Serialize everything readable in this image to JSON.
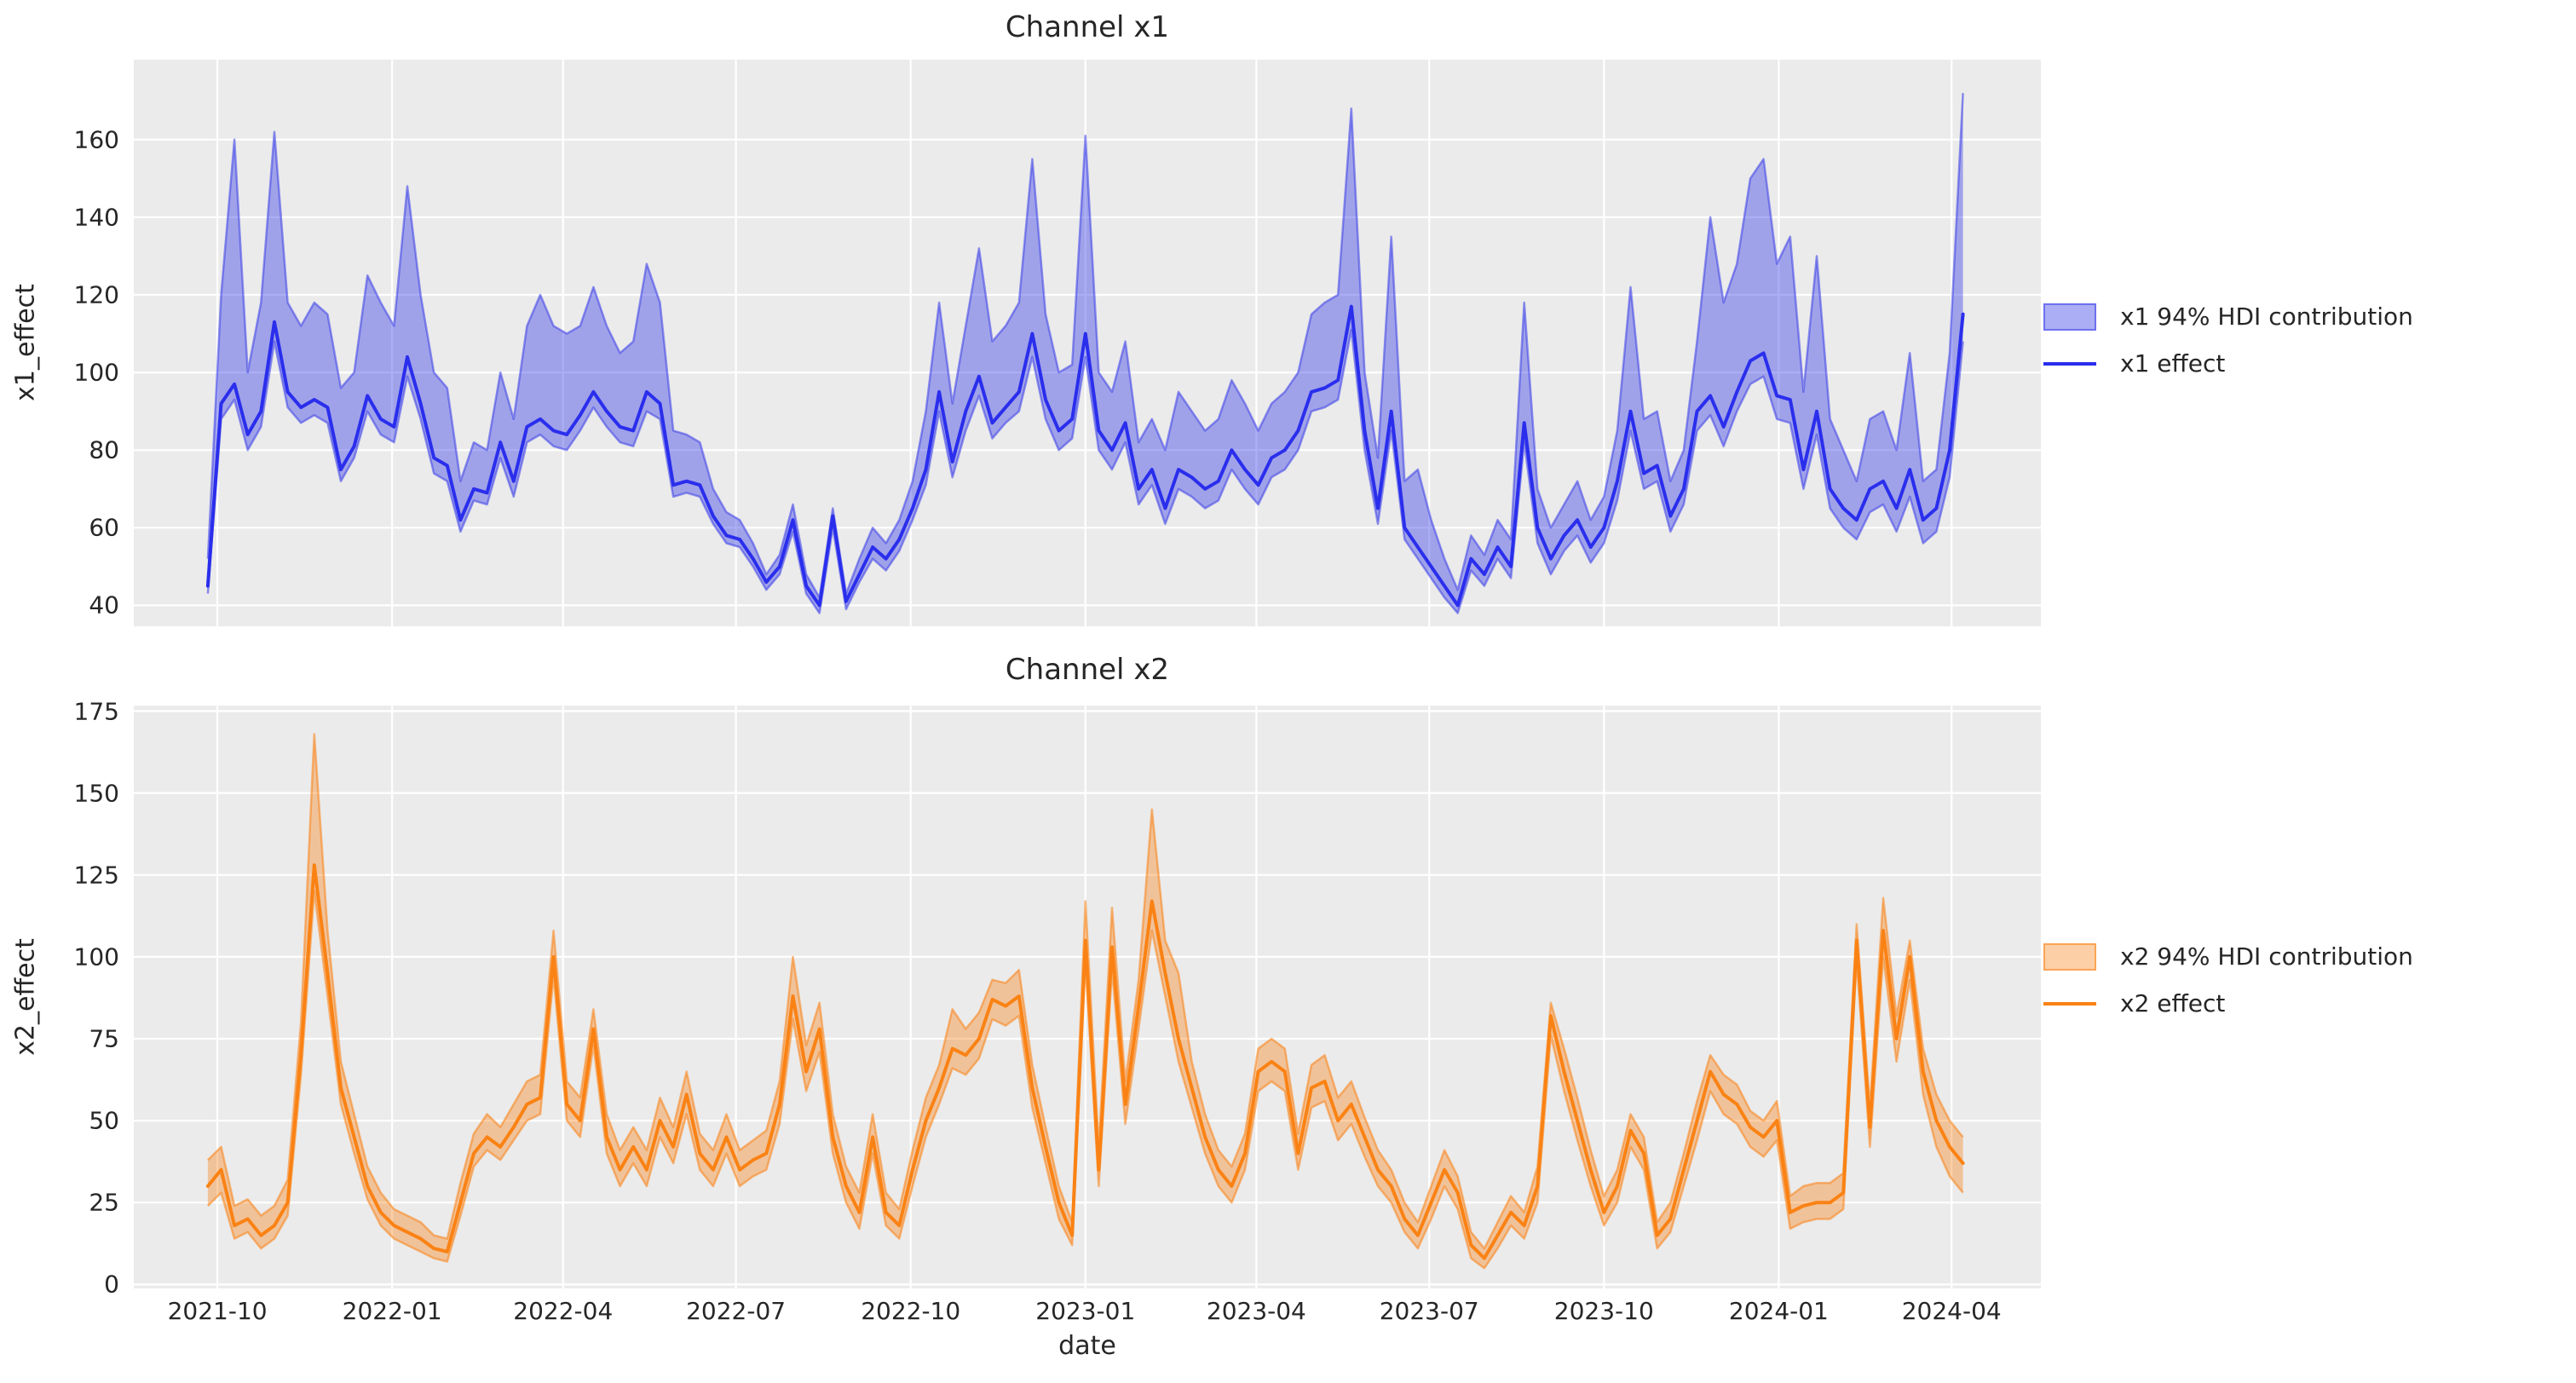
{
  "figure": {
    "background": "#ffffff",
    "axes_background": "#ebebeb",
    "grid_color": "#ffffff",
    "text_color": "#262626",
    "xlabel": "date"
  },
  "chart_data": [
    {
      "type": "line",
      "title": "Channel x1",
      "ylabel": "x1_effect",
      "xlabel": "date",
      "line_color": "#2a2eec",
      "band_fill": "rgba(58,62,232,0.42)",
      "band_edge": "rgba(58,62,232,0.55)",
      "legend": [
        "x1 94% HDI contribution",
        "x1 effect"
      ],
      "legend_position": "center right outside",
      "grid": true,
      "x_start": "2021-09-26",
      "x_end": "2024-04-07",
      "x_freq": "weekly",
      "xlim": [
        "2021-08-18",
        "2024-05-18"
      ],
      "ylim": [
        34.6,
        180.6
      ],
      "yticks": [
        160,
        140,
        120,
        100,
        80,
        60,
        40
      ],
      "xticks": [
        {
          "label": "2021-10",
          "date": "2021-10-01"
        },
        {
          "label": "2022-01",
          "date": "2022-01-01"
        },
        {
          "label": "2022-04",
          "date": "2022-04-01"
        },
        {
          "label": "2022-07",
          "date": "2022-07-01"
        },
        {
          "label": "2022-10",
          "date": "2022-10-01"
        },
        {
          "label": "2023-01",
          "date": "2023-01-01"
        },
        {
          "label": "2023-04",
          "date": "2023-04-01"
        },
        {
          "label": "2023-07",
          "date": "2023-07-01"
        },
        {
          "label": "2023-10",
          "date": "2023-10-01"
        },
        {
          "label": "2024-01",
          "date": "2024-01-01"
        },
        {
          "label": "2024-04",
          "date": "2024-04-01"
        }
      ],
      "series": [
        {
          "name": "x1 effect",
          "role": "line",
          "values": [
            45,
            92,
            97,
            84,
            90,
            113,
            95,
            91,
            93,
            91,
            75,
            81,
            94,
            88,
            86,
            104,
            92,
            78,
            76,
            62,
            70,
            69,
            82,
            72,
            86,
            88,
            85,
            84,
            89,
            95,
            90,
            86,
            85,
            95,
            92,
            71,
            72,
            71,
            63,
            58,
            57,
            52,
            46,
            50,
            62,
            45,
            40,
            63,
            41,
            48,
            55,
            52,
            57,
            65,
            75,
            95,
            77,
            90,
            99,
            87,
            91,
            95,
            110,
            93,
            85,
            88,
            110,
            85,
            80,
            87,
            70,
            75,
            65,
            75,
            73,
            70,
            72,
            80,
            75,
            71,
            78,
            80,
            85,
            95,
            96,
            98,
            117,
            85,
            65,
            90,
            60,
            55,
            50,
            45,
            40,
            52,
            48,
            55,
            50,
            87,
            60,
            52,
            58,
            62,
            55,
            60,
            72,
            90,
            74,
            76,
            63,
            70,
            90,
            94,
            86,
            95,
            103,
            105,
            94,
            93,
            75,
            90,
            70,
            65,
            62,
            70,
            72,
            65,
            75,
            62,
            65,
            80,
            115
          ]
        },
        {
          "name": "x1 94% HDI low",
          "role": "band_low",
          "values": [
            43,
            88,
            93,
            80,
            86,
            108,
            91,
            87,
            89,
            87,
            72,
            78,
            90,
            84,
            82,
            99,
            88,
            74,
            72,
            59,
            67,
            66,
            78,
            68,
            82,
            84,
            81,
            80,
            85,
            91,
            86,
            82,
            81,
            90,
            88,
            68,
            69,
            68,
            61,
            56,
            55,
            50,
            44,
            48,
            59,
            43,
            38,
            60,
            39,
            46,
            52,
            49,
            54,
            62,
            71,
            90,
            73,
            85,
            94,
            83,
            87,
            90,
            104,
            88,
            80,
            83,
            104,
            80,
            75,
            82,
            66,
            71,
            61,
            70,
            68,
            65,
            67,
            75,
            70,
            66,
            73,
            75,
            80,
            90,
            91,
            93,
            111,
            80,
            61,
            85,
            57,
            52,
            47,
            42,
            38,
            49,
            45,
            52,
            47,
            82,
            56,
            48,
            54,
            58,
            51,
            56,
            67,
            85,
            70,
            72,
            59,
            66,
            85,
            89,
            81,
            90,
            97,
            99,
            88,
            87,
            70,
            84,
            65,
            60,
            57,
            64,
            66,
            59,
            68,
            56,
            59,
            73,
            108
          ]
        },
        {
          "name": "x1 94% HDI high",
          "role": "band_high",
          "values": [
            52,
            120,
            160,
            100,
            118,
            162,
            118,
            112,
            118,
            115,
            96,
            100,
            125,
            118,
            112,
            148,
            120,
            100,
            96,
            72,
            82,
            80,
            100,
            88,
            112,
            120,
            112,
            110,
            112,
            122,
            112,
            105,
            108,
            128,
            118,
            85,
            84,
            82,
            70,
            64,
            62,
            56,
            48,
            53,
            66,
            48,
            42,
            65,
            43,
            52,
            60,
            56,
            62,
            72,
            90,
            118,
            92,
            112,
            132,
            108,
            112,
            118,
            155,
            115,
            100,
            102,
            161,
            100,
            95,
            108,
            82,
            88,
            80,
            95,
            90,
            85,
            88,
            98,
            92,
            85,
            92,
            95,
            100,
            115,
            118,
            120,
            168,
            100,
            78,
            135,
            72,
            75,
            62,
            52,
            44,
            58,
            53,
            62,
            57,
            118,
            70,
            60,
            66,
            72,
            62,
            68,
            85,
            122,
            88,
            90,
            72,
            80,
            108,
            140,
            118,
            128,
            150,
            155,
            128,
            135,
            95,
            130,
            88,
            80,
            72,
            88,
            90,
            80,
            105,
            72,
            75,
            105,
            172
          ]
        }
      ]
    },
    {
      "type": "line",
      "title": "Channel x2",
      "ylabel": "x2_effect",
      "xlabel": "date",
      "line_color": "#fa8214",
      "band_fill": "rgba(250,130,20,0.38)",
      "band_edge": "rgba(250,130,20,0.55)",
      "legend": [
        "x2 94% HDI contribution",
        "x2 effect"
      ],
      "legend_position": "center right outside",
      "grid": true,
      "x_start": "2021-09-26",
      "x_end": "2024-04-07",
      "x_freq": "weekly",
      "xlim": [
        "2021-08-18",
        "2024-05-18"
      ],
      "ylim": [
        -1.2,
        176.7
      ],
      "yticks": [
        175,
        150,
        125,
        100,
        75,
        50,
        25,
        0
      ],
      "xticks": [
        {
          "label": "2021-10",
          "date": "2021-10-01"
        },
        {
          "label": "2022-01",
          "date": "2022-01-01"
        },
        {
          "label": "2022-04",
          "date": "2022-04-01"
        },
        {
          "label": "2022-07",
          "date": "2022-07-01"
        },
        {
          "label": "2022-10",
          "date": "2022-10-01"
        },
        {
          "label": "2023-01",
          "date": "2023-01-01"
        },
        {
          "label": "2023-04",
          "date": "2023-04-01"
        },
        {
          "label": "2023-07",
          "date": "2023-07-01"
        },
        {
          "label": "2023-10",
          "date": "2023-10-01"
        },
        {
          "label": "2024-01",
          "date": "2024-01-01"
        },
        {
          "label": "2024-04",
          "date": "2024-04-01"
        }
      ],
      "series": [
        {
          "name": "x2 effect",
          "role": "line",
          "values": [
            30,
            35,
            18,
            20,
            15,
            18,
            25,
            70,
            128,
            95,
            60,
            45,
            30,
            22,
            18,
            16,
            14,
            11,
            10,
            25,
            40,
            45,
            42,
            48,
            55,
            57,
            100,
            55,
            50,
            78,
            45,
            35,
            42,
            35,
            50,
            42,
            58,
            40,
            35,
            45,
            35,
            38,
            40,
            55,
            88,
            65,
            78,
            45,
            30,
            22,
            45,
            22,
            18,
            35,
            50,
            60,
            72,
            70,
            75,
            87,
            85,
            88,
            60,
            42,
            25,
            15,
            105,
            35,
            103,
            55,
            85,
            117,
            95,
            75,
            60,
            45,
            35,
            30,
            40,
            65,
            68,
            65,
            40,
            60,
            62,
            50,
            55,
            45,
            35,
            30,
            20,
            15,
            25,
            35,
            28,
            12,
            8,
            15,
            22,
            18,
            30,
            82,
            65,
            50,
            35,
            22,
            30,
            47,
            40,
            15,
            20,
            35,
            50,
            65,
            58,
            55,
            48,
            45,
            50,
            22,
            24,
            25,
            25,
            28,
            105,
            48,
            108,
            75,
            100,
            65,
            50,
            42,
            37
          ]
        },
        {
          "name": "x2 94% HDI low",
          "role": "band_low",
          "values": [
            24,
            28,
            14,
            16,
            11,
            14,
            21,
            64,
            120,
            88,
            55,
            40,
            26,
            18,
            14,
            12,
            10,
            8,
            7,
            21,
            36,
            41,
            38,
            44,
            50,
            52,
            94,
            50,
            45,
            73,
            40,
            30,
            37,
            30,
            45,
            37,
            52,
            35,
            30,
            40,
            30,
            33,
            35,
            49,
            81,
            59,
            71,
            40,
            25,
            17,
            40,
            18,
            14,
            30,
            45,
            55,
            66,
            64,
            69,
            81,
            79,
            82,
            54,
            37,
            20,
            12,
            98,
            30,
            96,
            49,
            78,
            108,
            88,
            68,
            54,
            40,
            30,
            25,
            35,
            59,
            62,
            59,
            35,
            54,
            56,
            44,
            49,
            39,
            30,
            25,
            16,
            11,
            20,
            30,
            23,
            8,
            5,
            11,
            18,
            14,
            25,
            76,
            59,
            44,
            30,
            18,
            25,
            42,
            35,
            11,
            16,
            30,
            44,
            59,
            52,
            49,
            42,
            39,
            44,
            17,
            19,
            20,
            20,
            23,
            99,
            42,
            100,
            68,
            93,
            58,
            42,
            33,
            28
          ]
        },
        {
          "name": "x2 94% HDI high",
          "role": "band_high",
          "values": [
            38,
            42,
            24,
            26,
            21,
            24,
            32,
            80,
            168,
            108,
            68,
            52,
            36,
            28,
            23,
            21,
            19,
            15,
            14,
            31,
            46,
            52,
            48,
            55,
            62,
            64,
            108,
            62,
            57,
            84,
            52,
            41,
            48,
            41,
            57,
            48,
            65,
            46,
            41,
            52,
            41,
            44,
            47,
            62,
            100,
            73,
            86,
            52,
            36,
            28,
            52,
            28,
            23,
            41,
            57,
            67,
            84,
            78,
            83,
            93,
            92,
            96,
            67,
            48,
            30,
            19,
            117,
            42,
            115,
            62,
            93,
            145,
            105,
            95,
            68,
            52,
            41,
            36,
            46,
            72,
            75,
            72,
            46,
            67,
            70,
            57,
            62,
            51,
            41,
            35,
            25,
            19,
            30,
            41,
            33,
            16,
            11,
            19,
            27,
            22,
            36,
            86,
            72,
            57,
            41,
            27,
            35,
            52,
            45,
            19,
            25,
            40,
            56,
            70,
            64,
            61,
            53,
            50,
            56,
            27,
            30,
            31,
            31,
            34,
            110,
            54,
            118,
            82,
            105,
            72,
            58,
            50,
            45
          ]
        }
      ]
    }
  ]
}
